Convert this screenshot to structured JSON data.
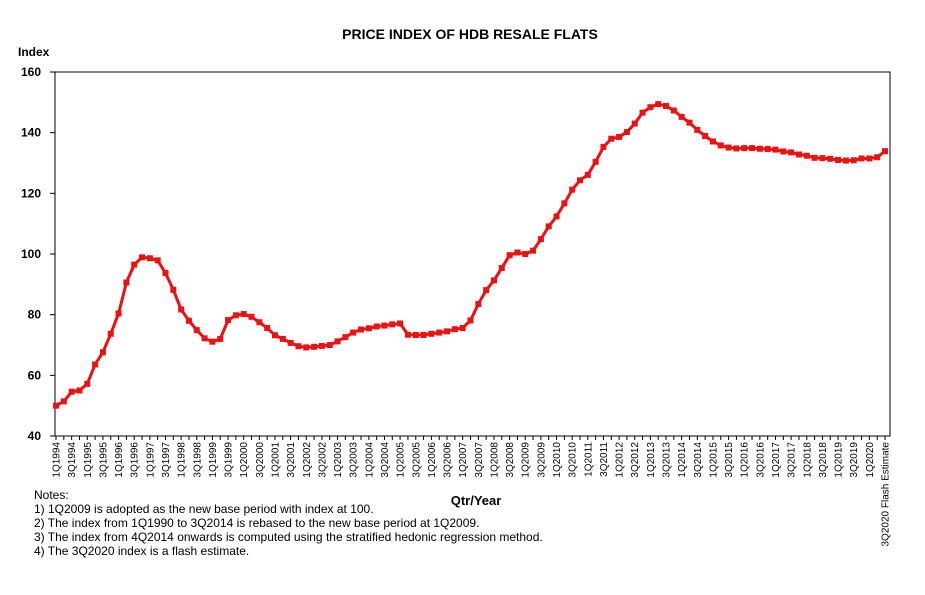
{
  "chart_data": {
    "type": "line",
    "title": "PRICE INDEX OF HDB RESALE FLATS",
    "y_label": "Index",
    "x_label": "Qtr/Year",
    "color": "#ee1111",
    "categories": [
      "1Q1994",
      null,
      "3Q1994",
      null,
      "1Q1995",
      null,
      "3Q1995",
      null,
      "1Q1996",
      null,
      "3Q1996",
      null,
      "1Q1997",
      null,
      "3Q1997",
      null,
      "1Q1998",
      null,
      "3Q1998",
      null,
      "1Q1999",
      null,
      "3Q1999",
      null,
      "1Q2000",
      null,
      "3Q2000",
      null,
      "1Q2001",
      null,
      "3Q2001",
      null,
      "1Q2002",
      null,
      "3Q2002",
      null,
      "1Q2003",
      null,
      "3Q2003",
      null,
      "1Q2004",
      null,
      "3Q2004",
      null,
      "1Q2005",
      null,
      "3Q2005",
      null,
      "1Q2006",
      null,
      "3Q2006",
      null,
      "1Q2007",
      null,
      "3Q2007",
      null,
      "1Q2008",
      null,
      "3Q2008",
      null,
      "1Q2009",
      null,
      "3Q2009",
      null,
      "1Q2010",
      null,
      "3Q2010",
      null,
      "1Q2011",
      null,
      "3Q2011",
      null,
      "1Q2012",
      null,
      "3Q2012",
      null,
      "1Q2013",
      null,
      "3Q2013",
      null,
      "1Q2014",
      null,
      "3Q2014",
      null,
      "1Q2015",
      null,
      "3Q2015",
      null,
      "1Q2016",
      null,
      "3Q2016",
      null,
      "1Q2017",
      null,
      "3Q2017",
      null,
      "1Q2018",
      null,
      "3Q2018",
      null,
      "1Q2019",
      null,
      "3Q2019",
      null,
      "1Q2020",
      null,
      "3Q2020 Flash Estimate"
    ],
    "values": [
      50.0,
      51.4,
      54.6,
      55.0,
      57.2,
      63.6,
      67.6,
      73.7,
      80.4,
      90.6,
      96.5,
      98.9,
      98.6,
      97.9,
      93.7,
      88.2,
      81.7,
      78.0,
      74.9,
      72.2,
      71.1,
      72.0,
      78.2,
      79.8,
      80.2,
      79.3,
      77.5,
      75.6,
      73.2,
      72.0,
      70.7,
      69.6,
      69.2,
      69.4,
      69.7,
      70.0,
      71.2,
      72.6,
      74.1,
      75.1,
      75.5,
      76.1,
      76.4,
      76.8,
      77.1,
      73.4,
      73.3,
      73.3,
      73.7,
      74.1,
      74.5,
      75.2,
      75.6,
      78.1,
      83.5,
      88.1,
      91.3,
      95.4,
      99.6,
      100.5,
      100.0,
      101.1,
      104.9,
      109.1,
      112.4,
      116.7,
      121.2,
      124.3,
      126.1,
      130.4,
      135.3,
      138.0,
      138.6,
      140.2,
      143.0,
      146.6,
      148.4,
      149.4,
      148.8,
      147.3,
      145.2,
      143.3,
      140.9,
      138.9,
      137.1,
      135.8,
      135.1,
      134.8,
      134.9,
      134.9,
      134.7,
      134.6,
      134.4,
      133.8,
      133.5,
      132.8,
      132.4,
      131.7,
      131.6,
      131.4,
      131.0,
      130.8,
      130.9,
      131.5,
      131.5,
      131.9,
      133.9
    ],
    "ylim": [
      40,
      160
    ],
    "yticks": [
      40,
      60,
      80,
      100,
      120,
      140,
      160
    ],
    "notes_title": "Notes:",
    "notes": [
      "1) 1Q2009 is adopted as the new base period with index at 100.",
      "2) The index from 1Q1990 to 3Q2014 is rebased to the new base period at 1Q2009.",
      "3) The index from 4Q2014 onwards is computed using the stratified hedonic regression method.",
      "4) The 3Q2020 index is a flash estimate."
    ]
  }
}
